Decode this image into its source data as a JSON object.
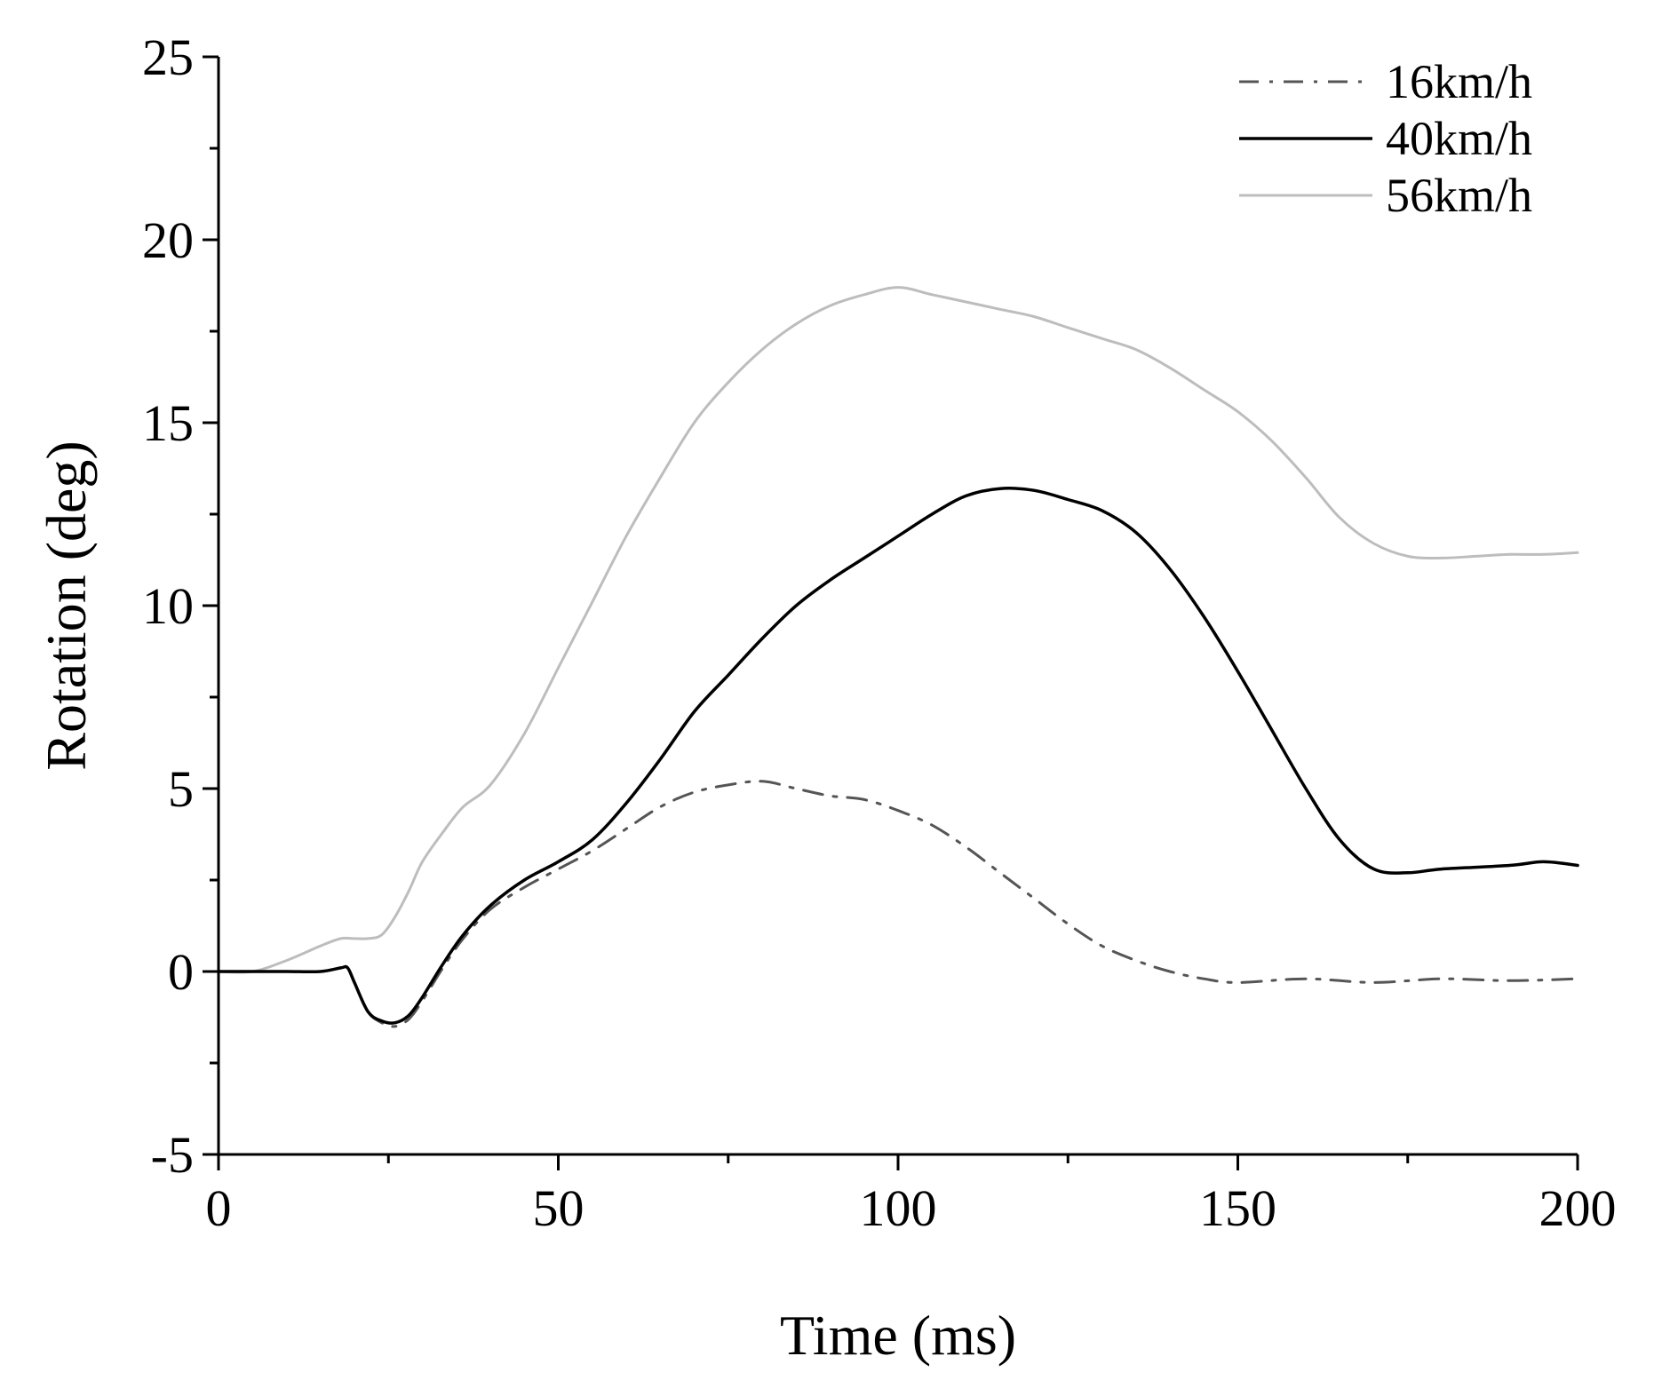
{
  "chart_data": {
    "type": "line",
    "xlabel": "Time (ms)",
    "ylabel": "Rotation (deg)",
    "xlim": [
      0,
      200
    ],
    "ylim": [
      -5,
      25
    ],
    "x_ticks": [
      0,
      50,
      100,
      150,
      200
    ],
    "y_ticks": [
      -5,
      0,
      5,
      10,
      15,
      20,
      25
    ],
    "grid": false,
    "legend_position": "top-right",
    "series": [
      {
        "name": "16km/h",
        "color": "#555555",
        "dash": "dash-dot",
        "x": [
          0,
          5,
          10,
          15,
          18,
          19,
          20,
          22,
          24,
          26,
          28,
          30,
          33,
          36,
          40,
          45,
          50,
          55,
          60,
          65,
          70,
          75,
          80,
          85,
          90,
          95,
          100,
          105,
          110,
          115,
          120,
          125,
          130,
          135,
          140,
          145,
          150,
          160,
          170,
          180,
          190,
          200
        ],
        "y": [
          0,
          0,
          0,
          0,
          0.1,
          0.1,
          -0.3,
          -1.1,
          -1.4,
          -1.5,
          -1.3,
          -0.8,
          0.1,
          0.9,
          1.7,
          2.3,
          2.8,
          3.3,
          3.9,
          4.5,
          4.9,
          5.1,
          5.2,
          5.0,
          4.8,
          4.7,
          4.4,
          4.0,
          3.4,
          2.7,
          2.0,
          1.3,
          0.7,
          0.3,
          0.0,
          -0.2,
          -0.3,
          -0.2,
          -0.3,
          -0.2,
          -0.25,
          -0.2
        ]
      },
      {
        "name": "40km/h",
        "color": "#000000",
        "dash": "solid",
        "x": [
          0,
          5,
          10,
          15,
          18,
          19,
          20,
          22,
          24,
          26,
          28,
          30,
          33,
          36,
          40,
          45,
          50,
          55,
          60,
          65,
          70,
          75,
          80,
          85,
          90,
          95,
          100,
          105,
          110,
          115,
          120,
          125,
          130,
          135,
          140,
          145,
          150,
          155,
          160,
          165,
          170,
          175,
          180,
          190,
          195,
          200
        ],
        "y": [
          0,
          0,
          0,
          0,
          0.1,
          0.1,
          -0.3,
          -1.1,
          -1.35,
          -1.4,
          -1.2,
          -0.7,
          0.2,
          1.0,
          1.8,
          2.5,
          3.0,
          3.6,
          4.6,
          5.8,
          7.1,
          8.1,
          9.1,
          10.0,
          10.7,
          11.3,
          11.9,
          12.5,
          13.0,
          13.2,
          13.15,
          12.9,
          12.6,
          12.0,
          11.0,
          9.7,
          8.2,
          6.6,
          5.0,
          3.6,
          2.8,
          2.7,
          2.8,
          2.9,
          3.0,
          2.9
        ]
      },
      {
        "name": "56km/h",
        "color": "#bdbdbd",
        "dash": "solid",
        "x": [
          0,
          5,
          10,
          15,
          18,
          20,
          22,
          24,
          26,
          28,
          30,
          33,
          36,
          40,
          45,
          50,
          55,
          60,
          65,
          70,
          75,
          80,
          85,
          90,
          95,
          100,
          105,
          110,
          115,
          120,
          125,
          130,
          135,
          140,
          145,
          150,
          155,
          160,
          165,
          170,
          175,
          180,
          185,
          190,
          195,
          200
        ],
        "y": [
          0,
          0,
          0.3,
          0.7,
          0.9,
          0.9,
          0.9,
          1.0,
          1.5,
          2.2,
          3.0,
          3.8,
          4.5,
          5.1,
          6.5,
          8.3,
          10.1,
          11.9,
          13.5,
          15.0,
          16.1,
          17.0,
          17.7,
          18.2,
          18.5,
          18.7,
          18.5,
          18.3,
          18.1,
          17.9,
          17.6,
          17.3,
          17.0,
          16.5,
          15.9,
          15.3,
          14.5,
          13.5,
          12.4,
          11.7,
          11.35,
          11.3,
          11.35,
          11.4,
          11.4,
          11.45
        ]
      }
    ]
  }
}
